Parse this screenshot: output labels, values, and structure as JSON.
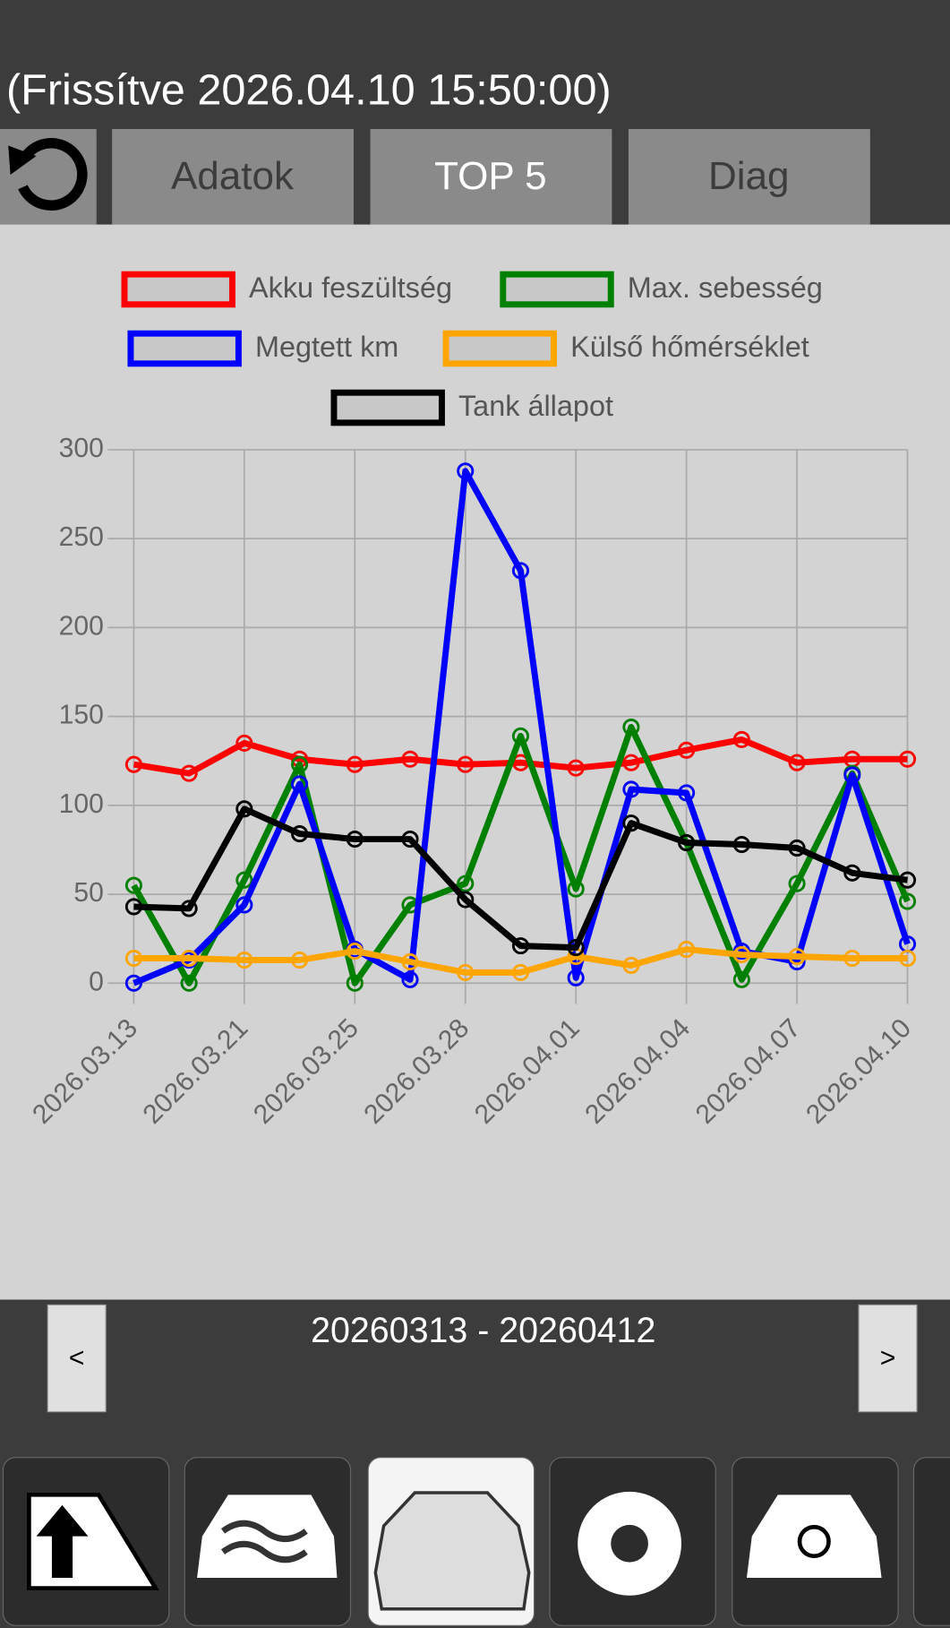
{
  "header": {
    "title": "(Frissítve 2026.04.10 15:50:00)"
  },
  "tabs": [
    "Adatok",
    "TOP 5",
    "Diag"
  ],
  "range": {
    "label": "20260313 - 20260412",
    "prev": "<",
    "next": ">"
  },
  "chart_data": {
    "type": "line",
    "categories": [
      "2026.03.13",
      null,
      "2026.03.21",
      null,
      "2026.03.25",
      null,
      "2026.03.28",
      null,
      "2026.04.01",
      null,
      "2026.04.04",
      null,
      "2026.04.07",
      null,
      "2026.04.10"
    ],
    "series": [
      {
        "name": "Akku feszültség",
        "color": "#ff0000",
        "values": [
          123,
          118,
          135,
          126,
          123,
          126,
          123,
          124,
          121,
          124,
          131,
          137,
          124,
          126,
          126
        ]
      },
      {
        "name": "Max. sebesség",
        "color": "#008000",
        "values": [
          55,
          0,
          58,
          123,
          0,
          44,
          56,
          139,
          53,
          144,
          79,
          2,
          56,
          118,
          46
        ]
      },
      {
        "name": "Megtett km",
        "color": "#0000ff",
        "values": [
          0,
          13,
          44,
          112,
          19,
          2,
          288,
          232,
          3,
          109,
          107,
          18,
          12,
          117,
          22
        ]
      },
      {
        "name": "Külső hőmérséklet",
        "color": "#ffa500",
        "values": [
          14,
          14,
          13,
          13,
          18,
          12,
          6,
          6,
          15,
          10,
          19,
          16,
          15,
          14,
          14
        ]
      },
      {
        "name": "Tank állapot",
        "color": "#000000",
        "values": [
          43,
          42,
          98,
          84,
          81,
          81,
          47,
          21,
          20,
          90,
          79,
          78,
          76,
          62,
          58
        ]
      }
    ],
    "ylim": [
      0,
      300
    ],
    "yticks": [
      0,
      50,
      100,
      150,
      200,
      250,
      300
    ],
    "grid": true
  }
}
